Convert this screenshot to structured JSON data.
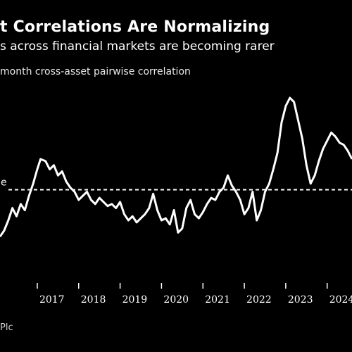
{
  "header": {
    "title": "t Correlations Are Normalizing",
    "subtitle": "s across financial markets are becoming rarer",
    "unit_label": "month cross-asset pairwise correlation"
  },
  "footer": {
    "source": "Plc"
  },
  "colors": {
    "background": "#000000",
    "line": "#ffffff",
    "reference": "#ffffff"
  },
  "chart_data": {
    "type": "line",
    "title": "t Correlations Are Normalizing",
    "subtitle": "s across financial markets are becoming rarer",
    "ylabel": "month cross-asset pairwise correlation",
    "xlim": [
      2016.1,
      2024.6
    ],
    "ylim": [
      0,
      1
    ],
    "x_ticks": [
      2017,
      2018,
      2019,
      2020,
      2021,
      2022,
      2023,
      2024
    ],
    "x_tick_labels": [
      "2017",
      "2018",
      "2019",
      "2020",
      "2021",
      "2022",
      "2023",
      "2024"
    ],
    "grid": false,
    "legend": "none",
    "reference_line": {
      "y": 0.45,
      "label": "e",
      "style": "dashed"
    },
    "series": [
      {
        "x": [
          2016.1,
          2016.2,
          2016.3,
          2016.4,
          2016.5,
          2016.6,
          2016.7,
          2016.8,
          2016.9,
          2017.0,
          2017.08,
          2017.2,
          2017.3,
          2017.4,
          2017.5,
          2017.6,
          2017.7,
          2017.8,
          2017.9,
          2018.0,
          2018.1,
          2018.2,
          2018.3,
          2018.4,
          2018.5,
          2018.6,
          2018.7,
          2018.8,
          2018.9,
          2019.0,
          2019.1,
          2019.2,
          2019.3,
          2019.4,
          2019.5,
          2019.6,
          2019.7,
          2019.8,
          2019.9,
          2020.0,
          2020.1,
          2020.2,
          2020.3,
          2020.4,
          2020.5,
          2020.6,
          2020.7,
          2020.8,
          2020.9,
          2021.0,
          2021.1,
          2021.2,
          2021.3,
          2021.4,
          2021.5,
          2021.6,
          2021.7,
          2021.8,
          2021.9,
          2022.0,
          2022.1,
          2022.2,
          2022.3,
          2022.4,
          2022.5,
          2022.6,
          2022.7,
          2022.8,
          2022.9,
          2023.0,
          2023.1,
          2023.2,
          2023.3,
          2023.4,
          2023.5,
          2023.6,
          2023.7,
          2023.8,
          2023.9,
          2024.0,
          2024.1,
          2024.2,
          2024.3,
          2024.4,
          2024.5,
          2024.6
        ],
        "values": [
          0.22,
          0.25,
          0.3,
          0.36,
          0.32,
          0.38,
          0.35,
          0.42,
          0.48,
          0.55,
          0.6,
          0.59,
          0.55,
          0.57,
          0.52,
          0.54,
          0.49,
          0.46,
          0.44,
          0.4,
          0.42,
          0.44,
          0.4,
          0.38,
          0.41,
          0.39,
          0.37,
          0.38,
          0.36,
          0.39,
          0.33,
          0.3,
          0.32,
          0.29,
          0.31,
          0.33,
          0.36,
          0.43,
          0.35,
          0.3,
          0.31,
          0.28,
          0.35,
          0.24,
          0.26,
          0.36,
          0.4,
          0.33,
          0.31,
          0.34,
          0.38,
          0.41,
          0.4,
          0.44,
          0.46,
          0.52,
          0.47,
          0.44,
          0.4,
          0.33,
          0.36,
          0.44,
          0.3,
          0.35,
          0.44,
          0.48,
          0.55,
          0.63,
          0.78,
          0.86,
          0.9,
          0.88,
          0.79,
          0.7,
          0.57,
          0.48,
          0.52,
          0.59,
          0.65,
          0.69,
          0.73,
          0.71,
          0.68,
          0.67,
          0.64,
          0.6
        ]
      }
    ]
  }
}
